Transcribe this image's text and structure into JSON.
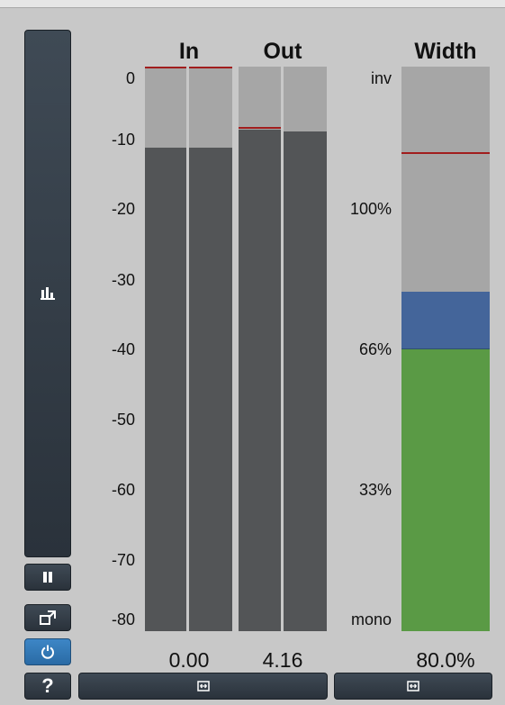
{
  "meter": {
    "headers": {
      "in": "In",
      "out": "Out",
      "width": "Width"
    },
    "db_scale": [
      "0",
      "-10",
      "-20",
      "-30",
      "-40",
      "-50",
      "-60",
      "-70",
      "-80"
    ],
    "width_scale": [
      "inv",
      "100%",
      "66%",
      "33%",
      "mono"
    ],
    "readouts": {
      "in": "0.00",
      "out": "4.16",
      "width": "80.0%"
    },
    "levels_db": {
      "in_left": -11.5,
      "in_right": -11.5,
      "out_left": -9,
      "out_right": -9
    },
    "peaks_db": {
      "in_left": 0,
      "in_right": 0,
      "out_left": -8.5,
      "out_right": -8.5
    },
    "width_percent": {
      "value": 80.0,
      "peak_marker": 0.15,
      "blue_top": 0.4,
      "green_top": 0.5
    }
  },
  "colors": {
    "meter_bg": "#a6a6a6",
    "meter_fill": "#535557",
    "peak": "#a11d1d",
    "width_green": "#5a9a45",
    "width_blue": "#44659a",
    "button": "#2f3841",
    "button_active": "#3279b9"
  },
  "icons": {
    "sidebar": "bar-chart-icon",
    "pause": "pause-icon",
    "detach": "detach-window-icon",
    "power": "power-icon",
    "help": "help-icon",
    "resize": "resize-horizontal-icon"
  },
  "help_label": "?"
}
